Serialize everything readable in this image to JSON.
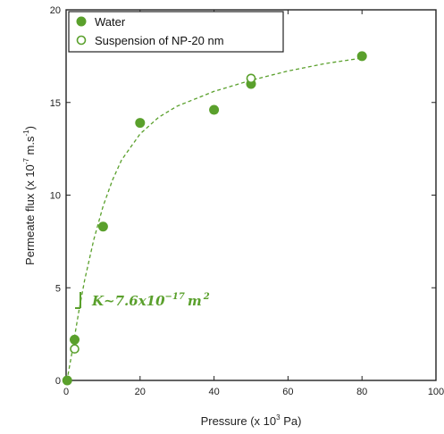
{
  "chart_data": {
    "type": "scatter",
    "xlabel": "Pressure (x 10",
    "xlabel_sup": "3",
    "xlabel_end": " Pa)",
    "ylabel": "Permeate flux (x 10",
    "ylabel_sup": "-7",
    "ylabel_end": " m.s",
    "ylabel_sup2": "-1",
    "ylabel_close": ")",
    "xlim": [
      0,
      100
    ],
    "ylim": [
      0,
      20
    ],
    "x_ticks": [
      "0",
      "20",
      "40",
      "60",
      "80",
      "100"
    ],
    "y_ticks": [
      "0",
      "5",
      "10",
      "15",
      "20"
    ],
    "legend_position": "top-left",
    "series": [
      {
        "name": "Water",
        "marker": "filled-circle",
        "color": "#5aa02c",
        "points": [
          [
            0.3,
            0.0
          ],
          [
            2.3,
            2.2
          ],
          [
            10,
            8.3
          ],
          [
            20,
            13.9
          ],
          [
            40,
            14.6
          ],
          [
            50,
            16.0
          ],
          [
            80,
            17.5
          ]
        ]
      },
      {
        "name": "Suspension of NP-20 nm",
        "marker": "open-circle",
        "color": "#5aa02c",
        "points": [
          [
            2.3,
            1.7
          ],
          [
            50,
            16.3
          ]
        ]
      }
    ],
    "fit_curve": {
      "style": "dashed",
      "color": "#5aa02c",
      "points": [
        [
          0.5,
          0.3
        ],
        [
          1.5,
          1.4
        ],
        [
          2.5,
          2.6
        ],
        [
          3.5,
          3.8
        ],
        [
          5,
          5.4
        ],
        [
          7.5,
          7.6
        ],
        [
          10,
          9.4
        ],
        [
          12.5,
          10.8
        ],
        [
          15,
          11.9
        ],
        [
          20,
          13.3
        ],
        [
          25,
          14.2
        ],
        [
          30,
          14.8
        ],
        [
          40,
          15.6
        ],
        [
          50,
          16.2
        ],
        [
          60,
          16.7
        ],
        [
          70,
          17.1
        ],
        [
          80,
          17.4
        ]
      ]
    },
    "annotation": {
      "text": "K~7.6x10",
      "sup": "−17",
      "unit": "m",
      "unit_sup": "2"
    }
  }
}
